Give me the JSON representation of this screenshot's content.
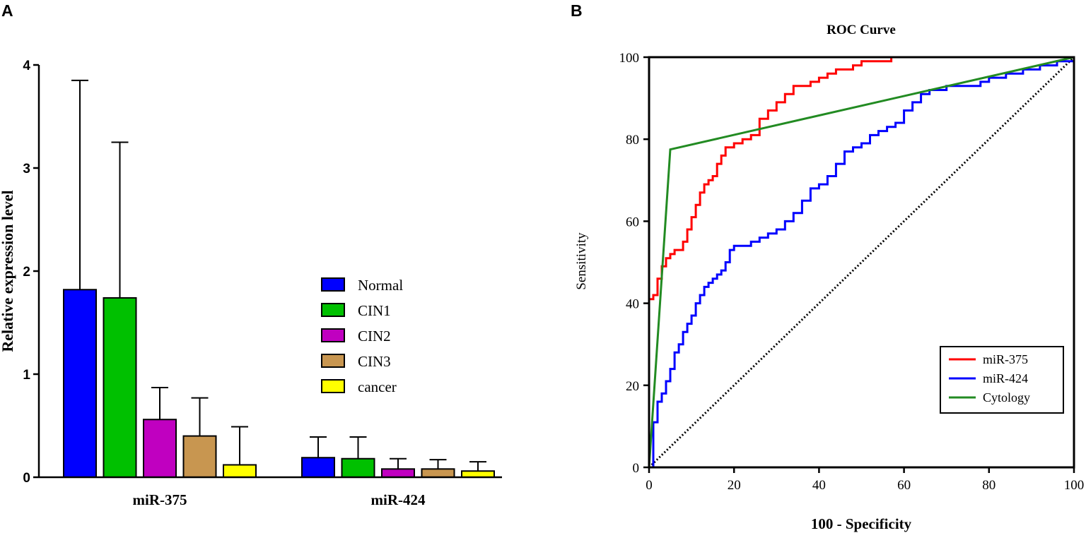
{
  "chart_data": [
    {
      "panel": "A",
      "type": "bar",
      "title": "",
      "xlabel": "",
      "ylabel": "Relative expression level",
      "ylim": [
        0,
        4
      ],
      "yticks": [
        "0",
        "1",
        "2",
        "3",
        "4"
      ],
      "categories": [
        "miR-375",
        "miR-424"
      ],
      "series": [
        {
          "name": "Normal",
          "color": "#0000ff",
          "values": [
            1.82,
            0.19
          ],
          "errors": [
            2.03,
            0.2
          ]
        },
        {
          "name": "CIN1",
          "color": "#00c000",
          "values": [
            1.74,
            0.18
          ],
          "errors": [
            1.51,
            0.21
          ]
        },
        {
          "name": "CIN2",
          "color": "#c000c0",
          "values": [
            0.56,
            0.08
          ],
          "errors": [
            0.31,
            0.1
          ]
        },
        {
          "name": "CIN3",
          "color": "#c89650",
          "values": [
            0.4,
            0.08
          ],
          "errors": [
            0.37,
            0.09
          ]
        },
        {
          "name": "cancer",
          "color": "#ffff00",
          "values": [
            0.12,
            0.06
          ],
          "errors": [
            0.37,
            0.09
          ]
        }
      ],
      "legend_position": "center-right"
    },
    {
      "panel": "B",
      "type": "line",
      "title": "ROC Curve",
      "xlabel": "100 - Specificity",
      "ylabel": "Sensitivity",
      "xlim": [
        0,
        100
      ],
      "ylim": [
        0,
        100
      ],
      "xticks": [
        "0",
        "20",
        "40",
        "60",
        "80",
        "100"
      ],
      "yticks": [
        "0",
        "20",
        "40",
        "60",
        "80",
        "100"
      ],
      "legend_position": "bottom-right",
      "series": [
        {
          "name": "miR-375",
          "color": "#ff0000",
          "x": [
            0,
            0,
            1,
            2,
            2,
            3,
            4,
            5,
            6,
            7,
            8,
            9,
            10,
            11,
            12,
            13,
            14,
            15,
            16,
            17,
            18,
            19,
            20,
            22,
            24,
            26,
            28,
            30,
            32,
            34,
            36,
            38,
            40,
            42,
            44,
            46,
            48,
            50,
            52,
            54,
            57,
            57,
            100
          ],
          "y": [
            0,
            41,
            42,
            44,
            46,
            49,
            51,
            52,
            53,
            53,
            55,
            58,
            61,
            64,
            67,
            69,
            70,
            71,
            74,
            76,
            78,
            78,
            79,
            80,
            81,
            85,
            87,
            89,
            91,
            93,
            93,
            94,
            95,
            96,
            97,
            97,
            98,
            99,
            99,
            99,
            99,
            100,
            100
          ]
        },
        {
          "name": "miR-424",
          "color": "#0000ff",
          "x": [
            0,
            1,
            2,
            3,
            4,
            5,
            6,
            7,
            8,
            9,
            10,
            11,
            12,
            13,
            14,
            15,
            16,
            17,
            18,
            19,
            20,
            22,
            24,
            26,
            28,
            30,
            32,
            34,
            36,
            38,
            40,
            42,
            44,
            46,
            48,
            50,
            52,
            54,
            56,
            58,
            60,
            62,
            64,
            66,
            68,
            70,
            72,
            74,
            76,
            78,
            80,
            82,
            84,
            86,
            88,
            90,
            92,
            94,
            96,
            98,
            100
          ],
          "y": [
            0,
            11,
            16,
            18,
            21,
            24,
            28,
            30,
            33,
            35,
            37,
            40,
            42,
            44,
            45,
            46,
            47,
            48,
            50,
            53,
            54,
            54,
            55,
            56,
            57,
            58,
            60,
            62,
            65,
            68,
            69,
            71,
            74,
            77,
            78,
            79,
            81,
            82,
            83,
            84,
            87,
            89,
            91,
            92,
            92,
            93,
            93,
            93,
            93,
            94,
            95,
            95,
            96,
            96,
            97,
            97,
            98,
            98,
            99,
            99,
            100
          ]
        },
        {
          "name": "Cytology",
          "color": "#228b22",
          "x": [
            0,
            5,
            100
          ],
          "y": [
            0,
            77.5,
            100
          ]
        },
        {
          "name": "reference",
          "color": "#000000",
          "dash": "dotted",
          "x": [
            0,
            100
          ],
          "y": [
            0,
            100
          ]
        }
      ]
    }
  ]
}
